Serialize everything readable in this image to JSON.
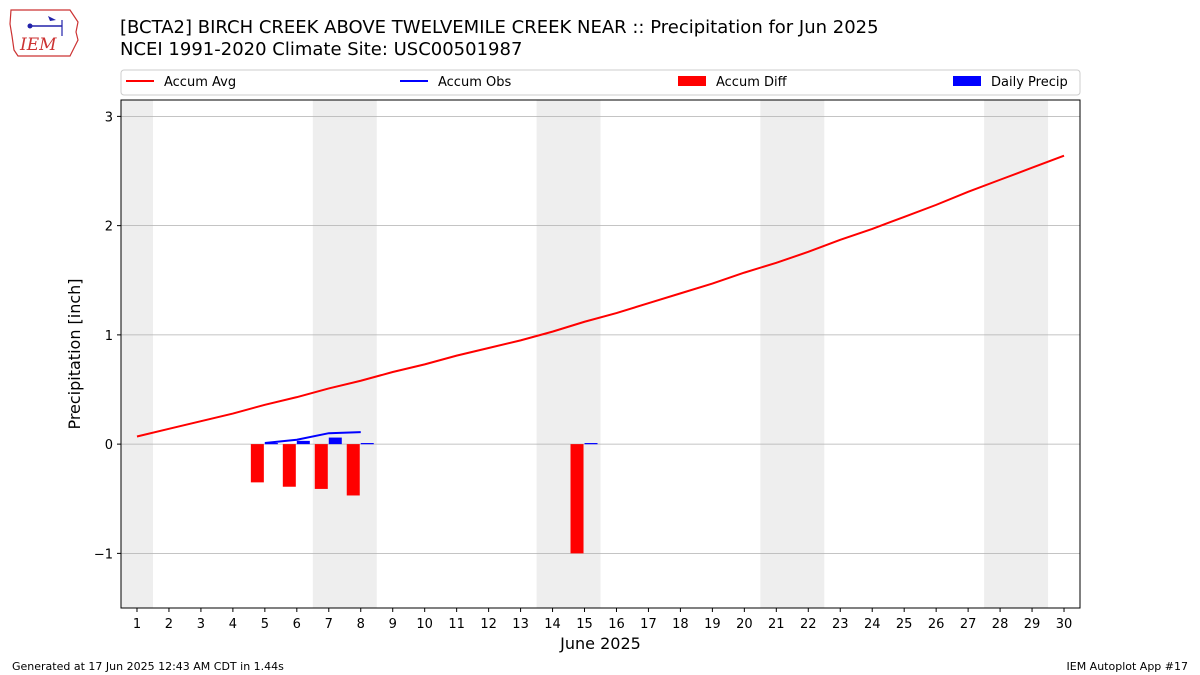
{
  "header": {
    "title_line1": "[BCTA2] BIRCH CREEK ABOVE TWELVEMILE CREEK NEAR :: Precipitation for Jun 2025",
    "title_line2": "NCEI 1991-2020 Climate Site: USC00501987",
    "logo_text": "IEM"
  },
  "footer": {
    "generated": "Generated at 17 Jun 2025 12:43 AM CDT in 1.44s",
    "app": "IEM Autoplot App #17"
  },
  "chart_data": {
    "type": "line",
    "xlabel": "June 2025",
    "ylabel": "Precipitation [inch]",
    "xlim": [
      0.5,
      30.5
    ],
    "ylim": [
      -1.5,
      3.15
    ],
    "yticks": [
      -1,
      0,
      1,
      2,
      3
    ],
    "ytick_labels": [
      "−1",
      "0",
      "1",
      "2",
      "3"
    ],
    "x": [
      1,
      2,
      3,
      4,
      5,
      6,
      7,
      8,
      9,
      10,
      11,
      12,
      13,
      14,
      15,
      16,
      17,
      18,
      19,
      20,
      21,
      22,
      23,
      24,
      25,
      26,
      27,
      28,
      29,
      30
    ],
    "x_tick_labels": [
      "1",
      "2",
      "3",
      "4",
      "5",
      "6",
      "7",
      "8",
      "9",
      "10",
      "11",
      "12",
      "13",
      "14",
      "15",
      "16",
      "17",
      "18",
      "19",
      "20",
      "21",
      "22",
      "23",
      "24",
      "25",
      "26",
      "27",
      "28",
      "29",
      "30"
    ],
    "grid": "horizontal",
    "weekend_shading": [
      [
        0.5,
        1.5
      ],
      [
        6.5,
        8.5
      ],
      [
        13.5,
        15.5
      ],
      [
        20.5,
        22.5
      ],
      [
        27.5,
        29.5
      ]
    ],
    "legend": [
      "Accum Avg",
      "Accum Obs",
      "Accum Diff",
      "Daily Precip"
    ],
    "legend_position": "top",
    "accum_avg": {
      "name": "Accum Avg",
      "color": "#ff0000",
      "x": [
        1,
        2,
        3,
        4,
        5,
        6,
        7,
        8,
        9,
        10,
        11,
        12,
        13,
        14,
        15,
        16,
        17,
        18,
        19,
        20,
        21,
        22,
        23,
        24,
        25,
        26,
        27,
        28,
        29,
        30
      ],
      "values": [
        0.07,
        0.14,
        0.21,
        0.28,
        0.36,
        0.43,
        0.51,
        0.58,
        0.66,
        0.73,
        0.81,
        0.88,
        0.95,
        1.03,
        1.12,
        1.2,
        1.29,
        1.38,
        1.47,
        1.57,
        1.66,
        1.76,
        1.87,
        1.97,
        2.08,
        2.19,
        2.31,
        2.42,
        2.53,
        2.64
      ]
    },
    "accum_obs": {
      "name": "Accum Obs",
      "color": "#0000ff",
      "x": [
        5,
        6,
        7,
        8
      ],
      "values": [
        0.01,
        0.04,
        0.1,
        0.11
      ]
    },
    "accum_diff": {
      "name": "Accum Diff",
      "color": "#ff0000",
      "x": [
        5,
        6,
        7,
        8,
        15
      ],
      "values": [
        -0.35,
        -0.39,
        -0.41,
        -0.47,
        -1.0
      ]
    },
    "daily_precip": {
      "name": "Daily Precip",
      "color": "#0000ff",
      "x": [
        5,
        6,
        7,
        8,
        15
      ],
      "values": [
        0.01,
        0.03,
        0.06,
        0.01,
        0.01
      ]
    },
    "shade_color": "#eeeeee",
    "grid_color": "#b0b0b0"
  }
}
